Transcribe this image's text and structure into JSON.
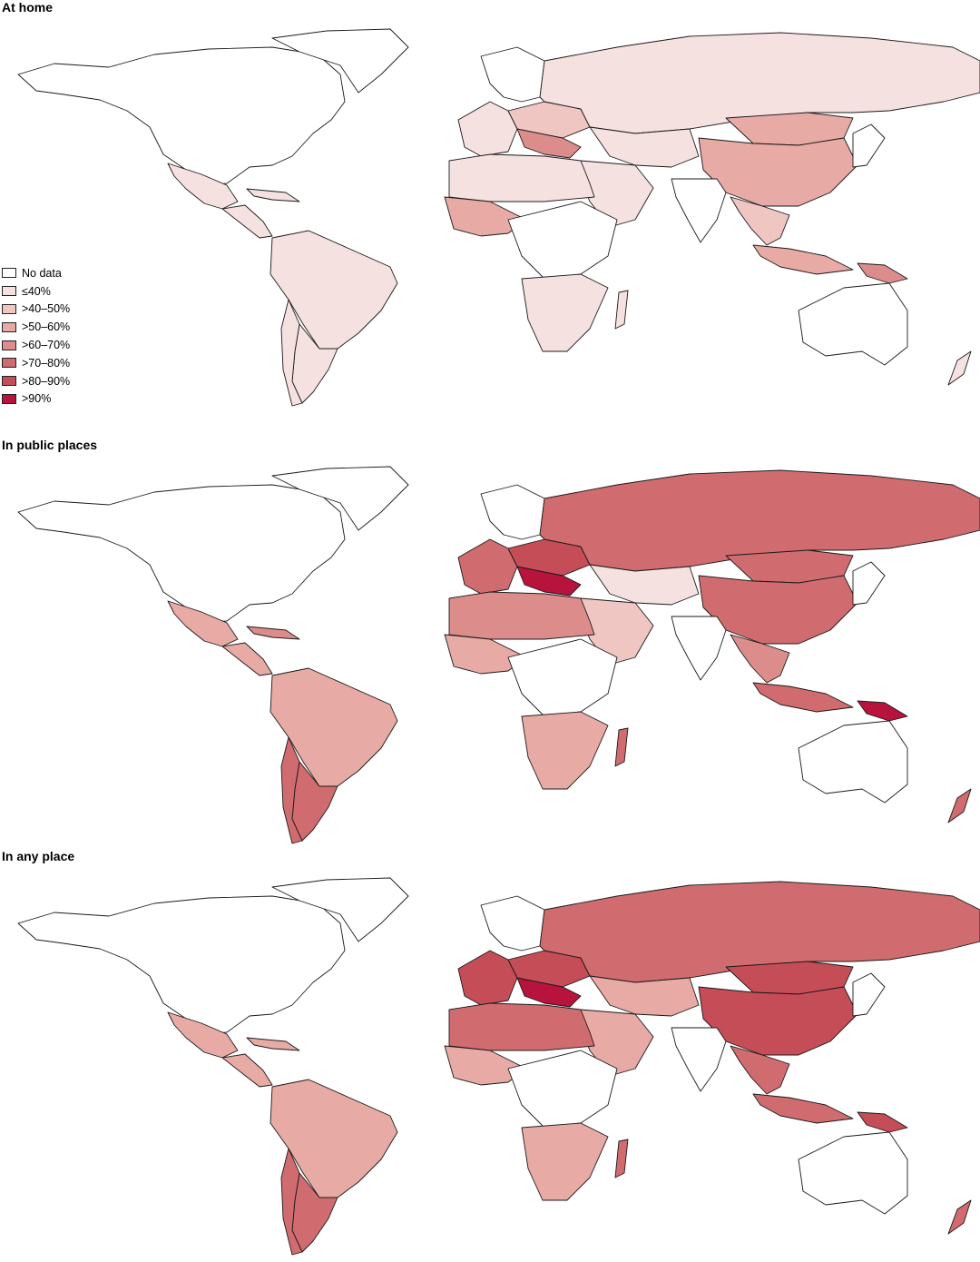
{
  "palette": {
    "outline": "#1a1a1a",
    "nodata": "#ffffff",
    "c1": "#f5e1df",
    "c2": "#efc6c1",
    "c3": "#e7aaa4",
    "c4": "#dc8d8b",
    "c5": "#d06c6f",
    "c6": "#c54d57",
    "c7": "#b8133c"
  },
  "legend": [
    {
      "label": "No data",
      "color": "#ffffff"
    },
    {
      "label": "≤40%",
      "color": "#f5e1df"
    },
    {
      "label": ">40–50%",
      "color": "#efc6c1"
    },
    {
      "label": ">50–60%",
      "color": "#e7aaa4"
    },
    {
      "label": ">60–70%",
      "color": "#dc8d8b"
    },
    {
      "label": ">70–80%",
      "color": "#d06c6f"
    },
    {
      "label": ">80–90%",
      "color": "#c54d57"
    },
    {
      "label": ">90%",
      "color": "#b8133c"
    }
  ],
  "panels": [
    {
      "title": "At home",
      "fills": {
        "northAmerica": "nodata",
        "mexico": "c1",
        "centralAmerica": "c1",
        "caribbean": "c1",
        "southAmerica": "c1",
        "argentina": "c1",
        "chile": "c1",
        "westEurope": "c1",
        "eastEurope": "c2",
        "balkans": "c4",
        "russia": "c1",
        "centralAsia": "c1",
        "china": "c3",
        "mongolia": "c3",
        "southeastAsia": "c2",
        "indonesia": "c3",
        "png": "c4",
        "northAfrica": "c1",
        "westAfrica": "c3",
        "middleEast": "c1",
        "southAfrica": "c1",
        "madagascar": "c1",
        "australia": "nodata",
        "newZealand": "c1"
      }
    },
    {
      "title": "In public places",
      "fills": {
        "northAmerica": "nodata",
        "mexico": "c3",
        "centralAmerica": "c3",
        "caribbean": "c4",
        "southAmerica": "c3",
        "argentina": "c5",
        "chile": "c5",
        "westEurope": "c5",
        "eastEurope": "c6",
        "balkans": "c7",
        "russia": "c5",
        "centralAsia": "c1",
        "china": "c5",
        "mongolia": "c5",
        "southeastAsia": "c4",
        "indonesia": "c5",
        "png": "c7",
        "northAfrica": "c4",
        "westAfrica": "c3",
        "middleEast": "c2",
        "southAfrica": "c3",
        "madagascar": "c5",
        "australia": "nodata",
        "newZealand": "c5"
      }
    },
    {
      "title": "In any place",
      "fills": {
        "northAmerica": "nodata",
        "mexico": "c3",
        "centralAmerica": "c3",
        "caribbean": "c3",
        "southAmerica": "c3",
        "argentina": "c5",
        "chile": "c5",
        "westEurope": "c6",
        "eastEurope": "c6",
        "balkans": "c7",
        "russia": "c5",
        "centralAsia": "c3",
        "china": "c6",
        "mongolia": "c6",
        "southeastAsia": "c5",
        "indonesia": "c5",
        "png": "c6",
        "northAfrica": "c5",
        "westAfrica": "c3",
        "middleEast": "c3",
        "southAfrica": "c3",
        "madagascar": "c5",
        "australia": "nodata",
        "newZealand": "c5"
      }
    }
  ]
}
